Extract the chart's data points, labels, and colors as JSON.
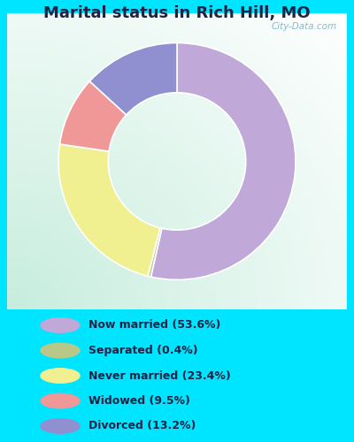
{
  "title": "Marital status in Rich Hill, MO",
  "slices": [
    {
      "label": "Now married (53.6%)",
      "value": 53.6,
      "color": "#C0A8D8"
    },
    {
      "label": "Separated (0.4%)",
      "value": 0.4,
      "color": "#B8C888"
    },
    {
      "label": "Never married (23.4%)",
      "value": 23.4,
      "color": "#F0F090"
    },
    {
      "label": "Widowed (9.5%)",
      "value": 9.5,
      "color": "#F09898"
    },
    {
      "label": "Divorced (13.2%)",
      "value": 13.2,
      "color": "#9090D0"
    }
  ],
  "legend_colors": [
    "#C0A8D8",
    "#B8C888",
    "#F0F090",
    "#F09898",
    "#9090D0"
  ],
  "legend_labels": [
    "Now married (53.6%)",
    "Separated (0.4%)",
    "Never married (23.4%)",
    "Widowed (9.5%)",
    "Divorced (13.2%)"
  ],
  "outer_bg": "#00E5FF",
  "title_fontsize": 13,
  "title_color": "#222244",
  "watermark": "City-Data.com"
}
